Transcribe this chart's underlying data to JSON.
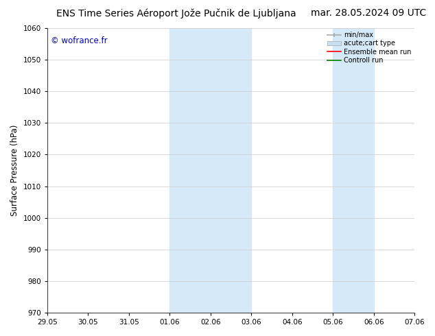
{
  "title_left": "ENS Time Series Aéroport Jože Pučnik de Ljubljana",
  "title_right": "mar. 28.05.2024 09 UTC",
  "ylabel": "Surface Pressure (hPa)",
  "ylim": [
    970,
    1060
  ],
  "yticks": [
    970,
    980,
    990,
    1000,
    1010,
    1020,
    1030,
    1040,
    1050,
    1060
  ],
  "xtick_labels": [
    "29.05",
    "30.05",
    "31.05",
    "01.06",
    "02.06",
    "03.06",
    "04.06",
    "05.06",
    "06.06",
    "07.06"
  ],
  "xtick_positions": [
    0,
    1,
    2,
    3,
    4,
    5,
    6,
    7,
    8,
    9
  ],
  "xlim": [
    0,
    9
  ],
  "shaded_regions": [
    {
      "xmin": 3,
      "xmax": 5,
      "color": "#d6e9f8",
      "alpha": 1.0
    },
    {
      "xmin": 7,
      "xmax": 8,
      "color": "#d6e9f8",
      "alpha": 1.0
    }
  ],
  "watermark": "© wofrance.fr",
  "watermark_color": "#0000cc",
  "background_color": "#ffffff",
  "plot_bg_color": "#ffffff",
  "legend_labels": [
    "min/max",
    "acute;cart type",
    "Ensemble mean run",
    "Controll run"
  ],
  "legend_colors": [
    "#aaaaaa",
    "#c8dff0",
    "#ff0000",
    "#008000"
  ],
  "title_fontsize": 10,
  "tick_fontsize": 7.5,
  "ylabel_fontsize": 8.5,
  "legend_fontsize": 7
}
